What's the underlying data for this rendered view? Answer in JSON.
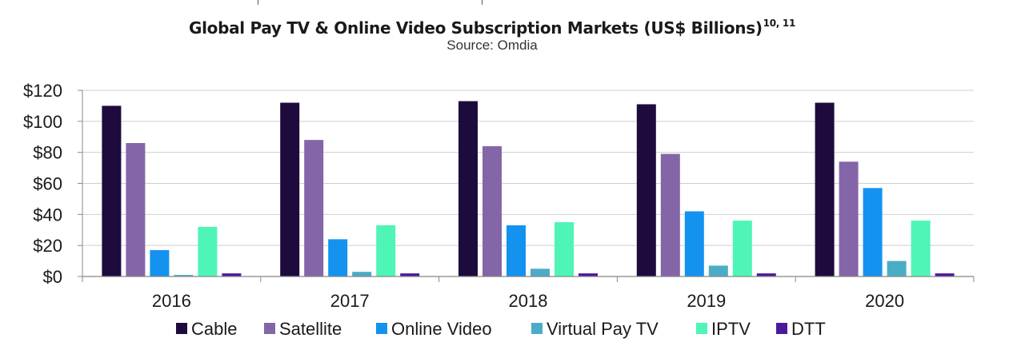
{
  "chart_data": {
    "type": "bar",
    "title": "Global Pay TV & Online Video Subscription Markets (US$ Billions)",
    "title_superscript": "10, 11",
    "subtitle": "Source: Omdia",
    "categories": [
      "2016",
      "2017",
      "2018",
      "2019",
      "2020"
    ],
    "series": [
      {
        "name": "Cable",
        "color": "#1e0b3d",
        "values": [
          110,
          112,
          113,
          111,
          112
        ]
      },
      {
        "name": "Satellite",
        "color": "#8466a8",
        "values": [
          86,
          88,
          84,
          79,
          74
        ]
      },
      {
        "name": "Online Video",
        "color": "#1492f0",
        "values": [
          17,
          24,
          33,
          42,
          57
        ]
      },
      {
        "name": "Virtual Pay TV",
        "color": "#4bacc6",
        "values": [
          1,
          3,
          5,
          7,
          10
        ]
      },
      {
        "name": "IPTV",
        "color": "#4ef5b6",
        "values": [
          32,
          33,
          35,
          36,
          36
        ]
      },
      {
        "name": "DTT",
        "color": "#4b1a9c",
        "values": [
          2,
          2,
          2,
          2,
          2
        ]
      }
    ],
    "ylim": [
      0,
      120
    ],
    "yticks": [
      {
        "value": 0,
        "label": "$0"
      },
      {
        "value": 20,
        "label": "$20"
      },
      {
        "value": 40,
        "label": "$40"
      },
      {
        "value": 60,
        "label": "$60"
      },
      {
        "value": 80,
        "label": "$80"
      },
      {
        "value": 100,
        "label": "$100"
      },
      {
        "value": 120,
        "label": "$120"
      }
    ],
    "grid": true,
    "legend_position": "bottom"
  }
}
